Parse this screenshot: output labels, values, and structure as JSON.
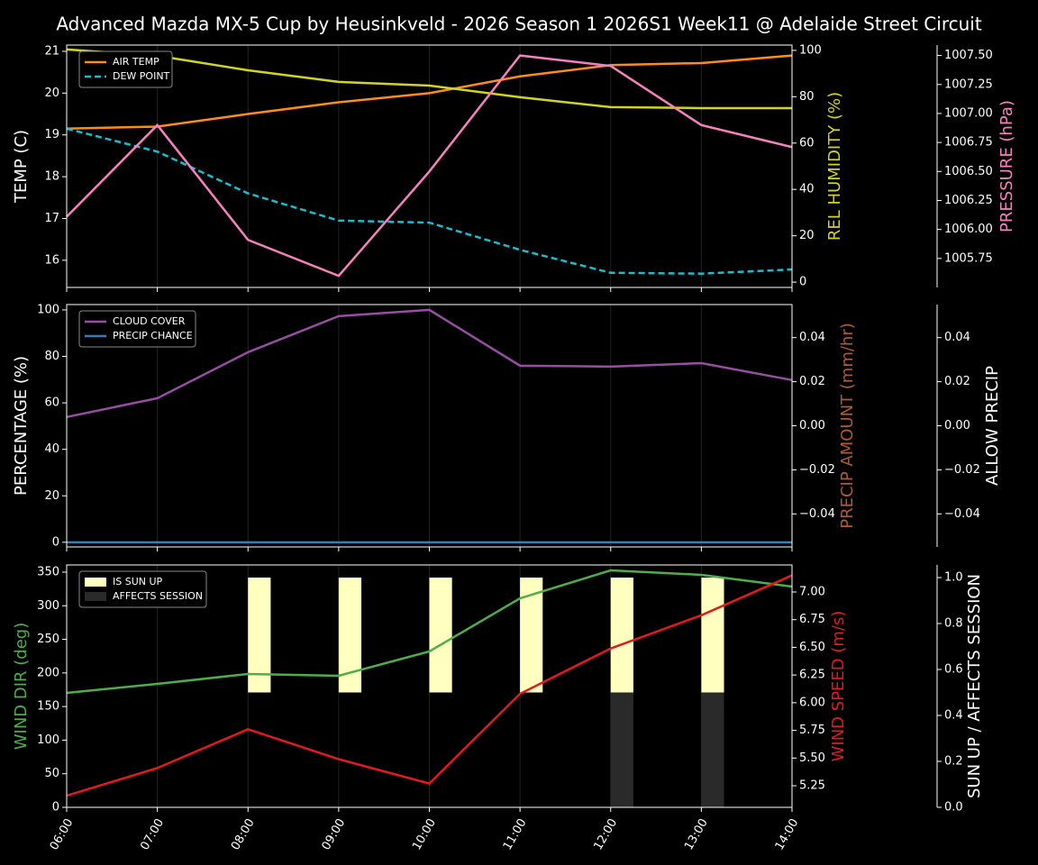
{
  "title": "Advanced Mazda MX-5 Cup by Heusinkveld - 2026 Season 1 2026S1 Week11 @ Adelaide Street Circuit",
  "x": [
    "06:00",
    "07:00",
    "08:00",
    "09:00",
    "10:00",
    "11:00",
    "12:00",
    "13:00",
    "14:00"
  ],
  "chart_data": [
    {
      "type": "line",
      "legend": "upper left",
      "ylabel": "TEMP (C)",
      "ylim": [
        15.35,
        21.15
      ],
      "yticks": [
        16,
        17,
        18,
        19,
        20,
        21
      ],
      "y2label": "REL HUMIDITY (%)",
      "y2color": "#d4d41f",
      "y2lim": [
        -2.3,
        102.3
      ],
      "y2ticks": [
        0,
        20,
        40,
        60,
        80,
        100
      ],
      "y3label": "PRESSURE (hPa)",
      "y3color": "#f781bf",
      "y3lim": [
        1005.5,
        1007.59
      ],
      "y3ticks": [
        1005.75,
        {
          "value": 1006,
          "label": "1006.00"
        },
        1006.25,
        {
          "value": 1006.5,
          "label": "1006.50"
        },
        1006.75,
        {
          "value": 1007,
          "label": "1007.00"
        },
        1007.25,
        {
          "value": 1007.5,
          "label": "1007.50"
        }
      ],
      "series": [
        {
          "name": "AIR TEMP",
          "color": "#ff8c1a",
          "values": [
            19.15,
            19.2,
            19.5,
            19.78,
            20.0,
            20.4,
            20.67,
            20.72,
            20.9
          ]
        },
        {
          "name": "DEW POINT",
          "color": "#17becf",
          "dashed": true,
          "values": [
            19.15,
            18.6,
            17.6,
            16.95,
            16.9,
            16.25,
            15.7,
            15.68,
            15.78
          ]
        },
        {
          "color": "#d4d41f",
          "axis": "y2",
          "values": [
            100.4,
            97.7,
            91.4,
            86.4,
            84.8,
            79.8,
            75.5,
            75.1,
            75.1
          ]
        },
        {
          "color": "#f781bf",
          "axis": "y3",
          "values": [
            1006.11,
            1006.9,
            1005.91,
            1005.6,
            1006.5,
            1007.5,
            1007.41,
            1006.9,
            1006.71
          ]
        }
      ]
    },
    {
      "type": "line",
      "legend": "upper left",
      "ylabel": "PERCENTAGE (%)",
      "ylim": [
        -2,
        102.3
      ],
      "yticks": [
        0,
        20,
        40,
        60,
        80,
        100
      ],
      "y2label": "PRECIP AMOUNT (mm/hr)",
      "y2color": "#b35a30",
      "y2lim": [
        -0.055,
        0.055
      ],
      "y2ticks": [
        {
          "value": -0.04,
          "label": "−0.04"
        },
        {
          "value": -0.02,
          "label": "−0.02"
        },
        {
          "value": 0,
          "label": "0.00"
        },
        {
          "value": 0.02,
          "label": "0.02"
        },
        {
          "value": 0.04,
          "label": "0.04"
        }
      ],
      "y3label": "ALLOW PRECIP",
      "y3color": "#ffffff",
      "y3lim": [
        -0.055,
        0.055
      ],
      "y3ticks": [
        {
          "value": -0.04,
          "label": "−0.04"
        },
        {
          "value": -0.02,
          "label": "−0.02"
        },
        {
          "value": 0,
          "label": "0.00"
        },
        {
          "value": 0.02,
          "label": "0.02"
        },
        {
          "value": 0.04,
          "label": "0.04"
        }
      ],
      "series": [
        {
          "name": "CLOUD COVER",
          "color": "#984ea3",
          "values": [
            53.9,
            62,
            81.8,
            97.3,
            100,
            76,
            75.6,
            77.1,
            69.8
          ]
        },
        {
          "name": "PRECIP CHANCE",
          "color": "#377eb8",
          "values": [
            0,
            0,
            0,
            0,
            0,
            0,
            0,
            0,
            0
          ]
        }
      ]
    },
    {
      "type": "line",
      "legend": "upper left",
      "ylabel": "WIND DIR (deg)",
      "ycolor": "#4daf4a",
      "ylim": [
        0,
        360.7
      ],
      "yticks": [
        0,
        50,
        100,
        150,
        200,
        250,
        300,
        350
      ],
      "y2label": "WIND SPEED (m/s)",
      "y2color": "#e41a1c",
      "y2lim": [
        5.055,
        7.244
      ],
      "y2ticks": [
        5.25,
        {
          "value": 5.5,
          "label": "5.50"
        },
        5.75,
        {
          "value": 6,
          "label": "6.00"
        },
        6.25,
        {
          "value": 6.5,
          "label": "6.50"
        },
        6.75,
        {
          "value": 7,
          "label": "7.00"
        }
      ],
      "y3label": "SUN UP / AFFECTS SESSION",
      "y3color": "#ffffff",
      "y3lim": [
        0,
        1.055
      ],
      "y3ticks": [
        {
          "value": 0,
          "label": "0.0"
        },
        0.2,
        0.4,
        0.6,
        0.8,
        {
          "value": 1,
          "label": "1.0"
        }
      ],
      "series": [
        {
          "name": "IS SUN UP",
          "type": "bar",
          "part": "upper",
          "color": "#ffffc0",
          "axis": "y3",
          "values": [
            0,
            0,
            1,
            1,
            1,
            1,
            1,
            1,
            0
          ]
        },
        {
          "name": "AFFECTS SESSION",
          "type": "bar",
          "part": "lower",
          "color": "#2a2a2a",
          "axis": "y3",
          "values": [
            0,
            0,
            0,
            0,
            0,
            0,
            1,
            1,
            0
          ]
        },
        {
          "color": "#4daf4a",
          "values": [
            170.3,
            183.7,
            198.5,
            195.8,
            232,
            311,
            352.7,
            346,
            328.5
          ]
        },
        {
          "color": "#e41a1c",
          "axis": "y2",
          "values": [
            5.16,
            5.41,
            5.76,
            5.49,
            5.27,
            6.08,
            6.49,
            6.79,
            7.15
          ]
        }
      ]
    }
  ]
}
